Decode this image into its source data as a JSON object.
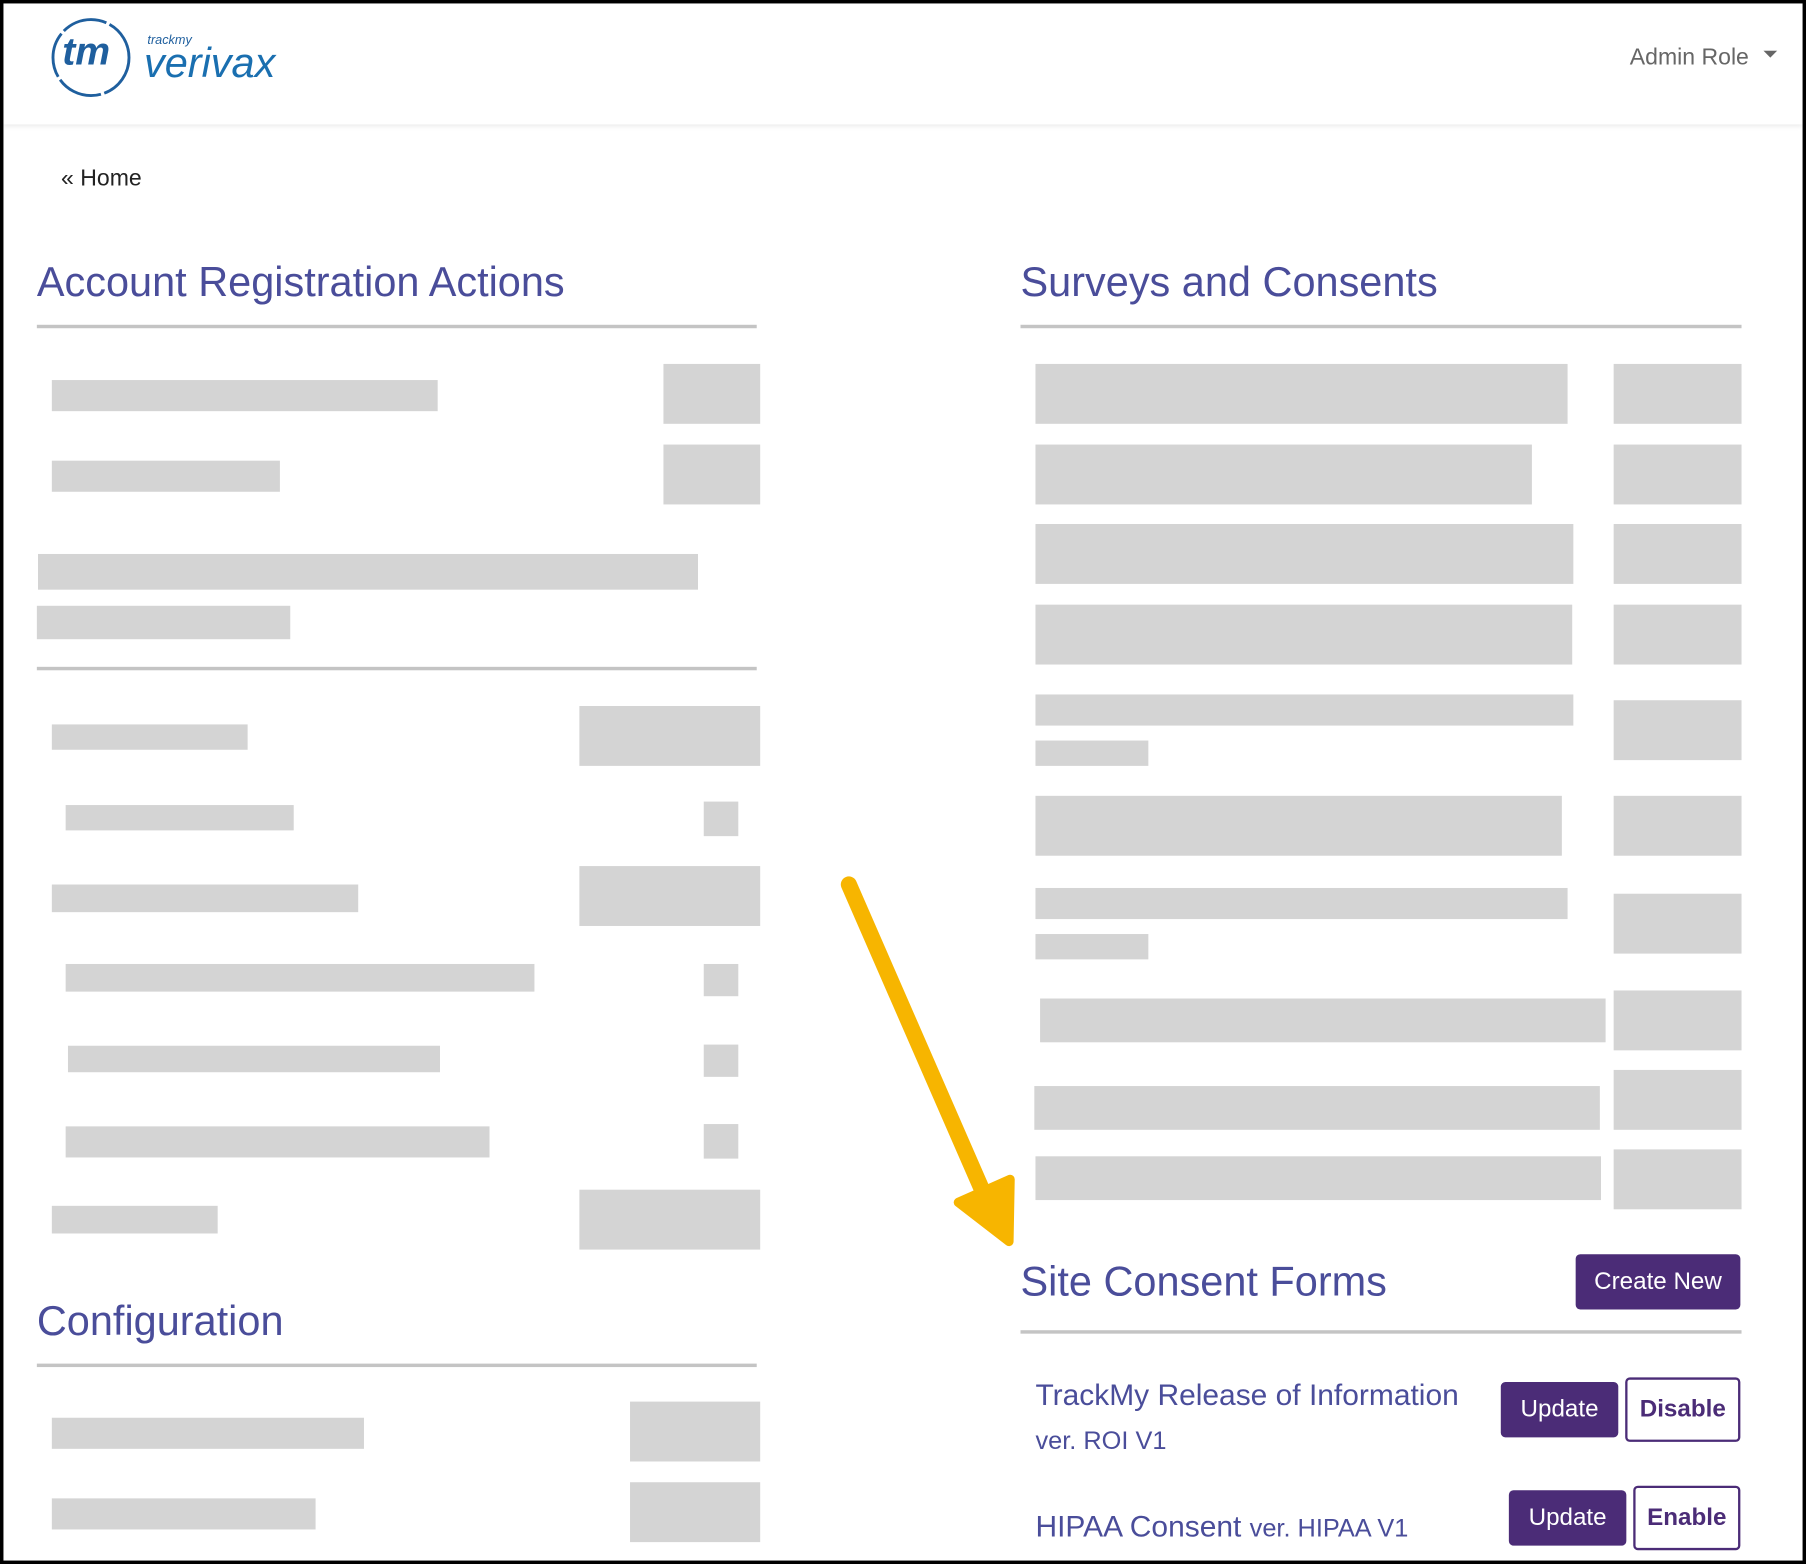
{
  "header": {
    "logo_mark": "tm",
    "logo_small": "trackmy",
    "logo_name": "verivax",
    "user_menu": "Admin Role"
  },
  "breadcrumb": "« Home",
  "sections": {
    "account": "Account Registration Actions",
    "config": "Configuration",
    "surveys": "Surveys and Consents",
    "site_consent": {
      "title": "Site Consent Forms",
      "create_button": "Create New",
      "forms": [
        {
          "name": "TrackMy Release of Information",
          "version": "ver. ROI V1",
          "buttons": [
            "Update",
            "Disable"
          ]
        },
        {
          "name": "HIPAA Consent",
          "version": "ver. HIPAA V1",
          "buttons": [
            "Update",
            "Enable"
          ]
        }
      ]
    }
  }
}
